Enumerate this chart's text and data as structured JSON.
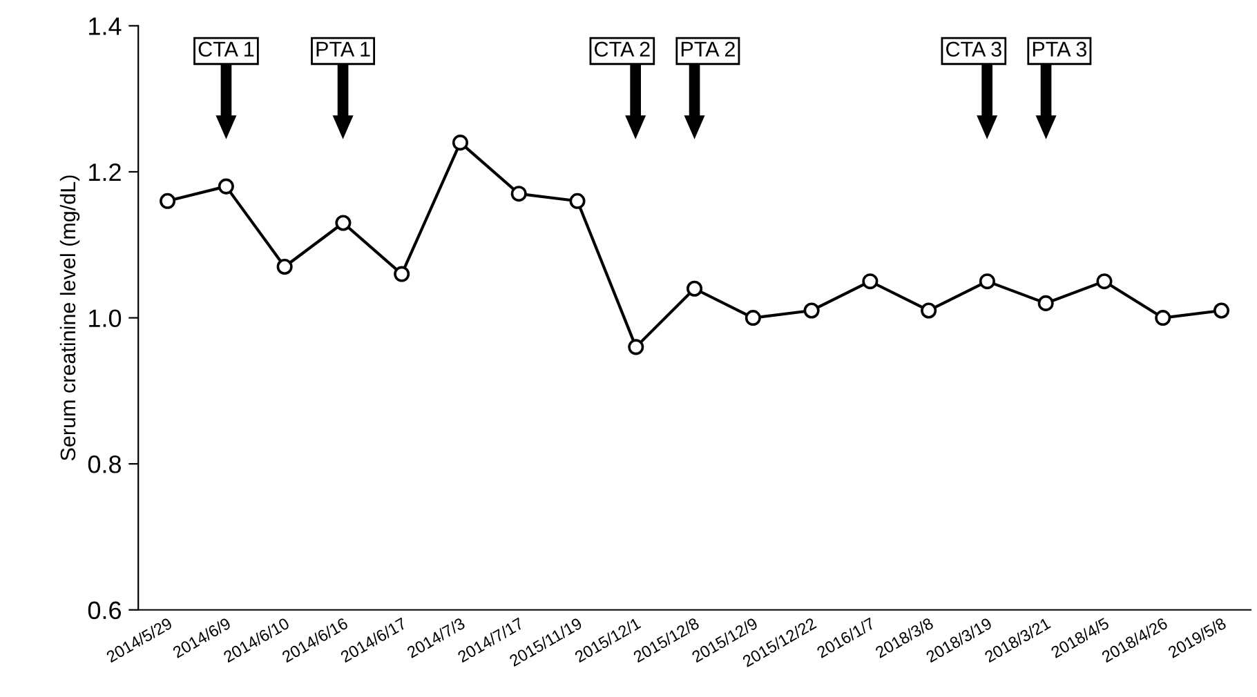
{
  "chart_data": {
    "type": "line",
    "ylabel": "Serum creatinine level (mg/dL)",
    "categories": [
      "2014/5/29",
      "2014/6/9",
      "2014/6/10",
      "2014/6/16",
      "2014/6/17",
      "2014/7/3",
      "2014/7/17",
      "2015/11/19",
      "2015/12/1",
      "2015/12/8",
      "2015/12/9",
      "2015/12/22",
      "2016/1/7",
      "2018/3/8",
      "2018/3/19",
      "2018/3/21",
      "2018/4/5",
      "2018/4/26",
      "2019/5/8"
    ],
    "series": [
      {
        "color": "#000000",
        "values": [
          1.16,
          1.18,
          1.07,
          1.13,
          1.06,
          1.24,
          1.17,
          1.16,
          0.96,
          1.04,
          1.0,
          1.01,
          1.05,
          1.01,
          1.05,
          1.02,
          1.05,
          1.0,
          1.01
        ]
      }
    ],
    "ylim": [
      0.6,
      1.4
    ],
    "yticks": [
      {
        "value": 0.6,
        "label": "0.6"
      },
      {
        "value": 0.8,
        "label": "0.8"
      },
      {
        "value": 1.0,
        "label": "1.0"
      },
      {
        "value": 1.2,
        "label": "1.2"
      },
      {
        "value": 1.4,
        "label": "1.4"
      }
    ],
    "annotations": [
      "CTA 1",
      "PTA 1",
      "CTA 2",
      "PTA 2",
      "CTA 3",
      "PTA 3"
    ],
    "marker": "circle",
    "line_style": "solid",
    "grid": false,
    "legend": false
  }
}
